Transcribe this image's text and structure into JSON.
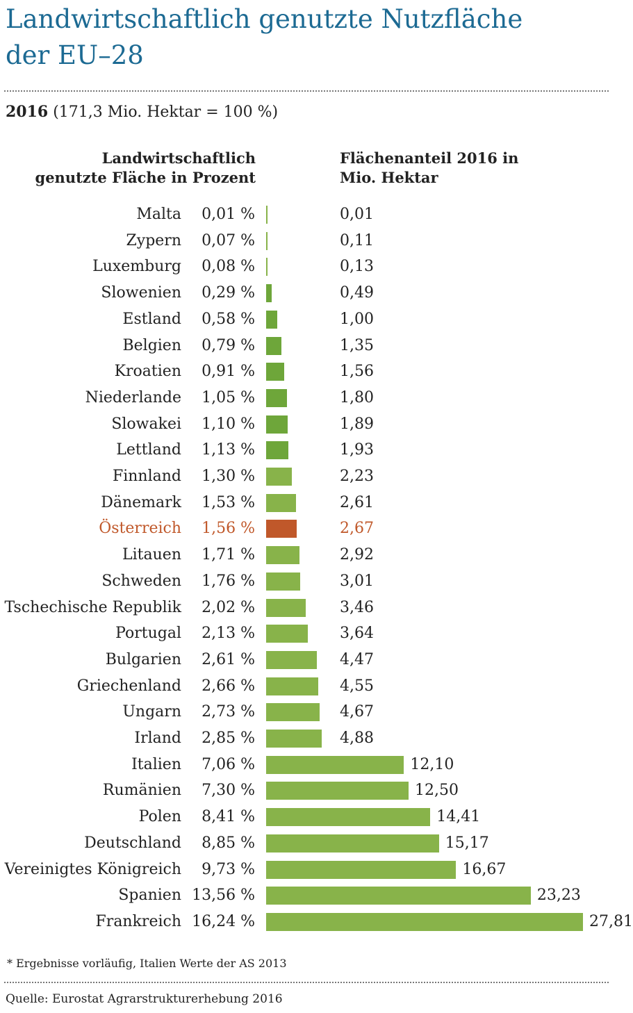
{
  "title_line1": "Landwirtschaftlich genutzte Nutzfläche",
  "title_line2": "der EU–28",
  "subtitle_bold": "2016",
  "subtitle_rest": " (171,3 Mio. Hektar = 100 %)",
  "col_left_line1": "Landwirtschaftlich",
  "col_left_line2": "genutzte Fläche in Prozent",
  "col_right_line1": "Flächenanteil 2016 in",
  "col_right_line2": "Mio. Hektar",
  "footnote": "* Ergebnisse vorläufig, Italien Werte der AS 2013",
  "source": "Quelle: Eurostat Agrarstrukturerhebung 2016",
  "colors": {
    "title": "#1c6a93",
    "bar": "#88b34a",
    "bar_dark": "#6ea63a",
    "highlight": "#c0582a"
  },
  "chart_data": {
    "type": "bar",
    "orientation": "horizontal",
    "highlight": "Österreich",
    "categories": [
      "Malta",
      "Zypern",
      "Luxemburg",
      "Slowenien",
      "Estland",
      "Belgien",
      "Kroatien",
      "Niederlande",
      "Slowakei",
      "Lettland",
      "Finnland",
      "Dänemark",
      "Österreich",
      "Litauen",
      "Schweden",
      "Tschechische Republik",
      "Portugal",
      "Bulgarien",
      "Griechenland",
      "Ungarn",
      "Irland",
      "Italien",
      "Rumänien",
      "Polen",
      "Deutschland",
      "Vereinigtes Königreich",
      "Spanien",
      "Frankreich"
    ],
    "percent_labels": [
      "0,01 %",
      "0,07 %",
      "0,08 %",
      "0,29 %",
      "0,58 %",
      "0,79 %",
      "0,91 %",
      "1,05 %",
      "1,10 %",
      "1,13 %",
      "1,30 %",
      "1,53 %",
      "1,56 %",
      "1,71 %",
      "1,76 %",
      "2,02 %",
      "2,13 %",
      "2,61 %",
      "2,66 %",
      "2,73 %",
      "2,85 %",
      "7,06 %",
      "7,30 %",
      "8,41 %",
      "8,85 %",
      "9,73 %",
      "13,56 %",
      "16,24 %"
    ],
    "value_labels": [
      "0,01",
      "0,11",
      "0,13",
      "0,49",
      "1,00",
      "1,35",
      "1,56",
      "1,80",
      "1,89",
      "1,93",
      "2,23",
      "2,61",
      "2,67",
      "2,92",
      "3,01",
      "3,46",
      "3,64",
      "4,47",
      "4,55",
      "4,67",
      "4,88",
      "12,10",
      "12,50",
      "14,41",
      "15,17",
      "16,67",
      "23,23",
      "27,81"
    ],
    "values": [
      0.01,
      0.11,
      0.13,
      0.49,
      1.0,
      1.35,
      1.56,
      1.8,
      1.89,
      1.93,
      2.23,
      2.61,
      2.67,
      2.92,
      3.01,
      3.46,
      3.64,
      4.47,
      4.55,
      4.67,
      4.88,
      12.1,
      12.5,
      14.41,
      15.17,
      16.67,
      23.23,
      27.81
    ],
    "xlim": [
      0,
      27.81
    ]
  }
}
